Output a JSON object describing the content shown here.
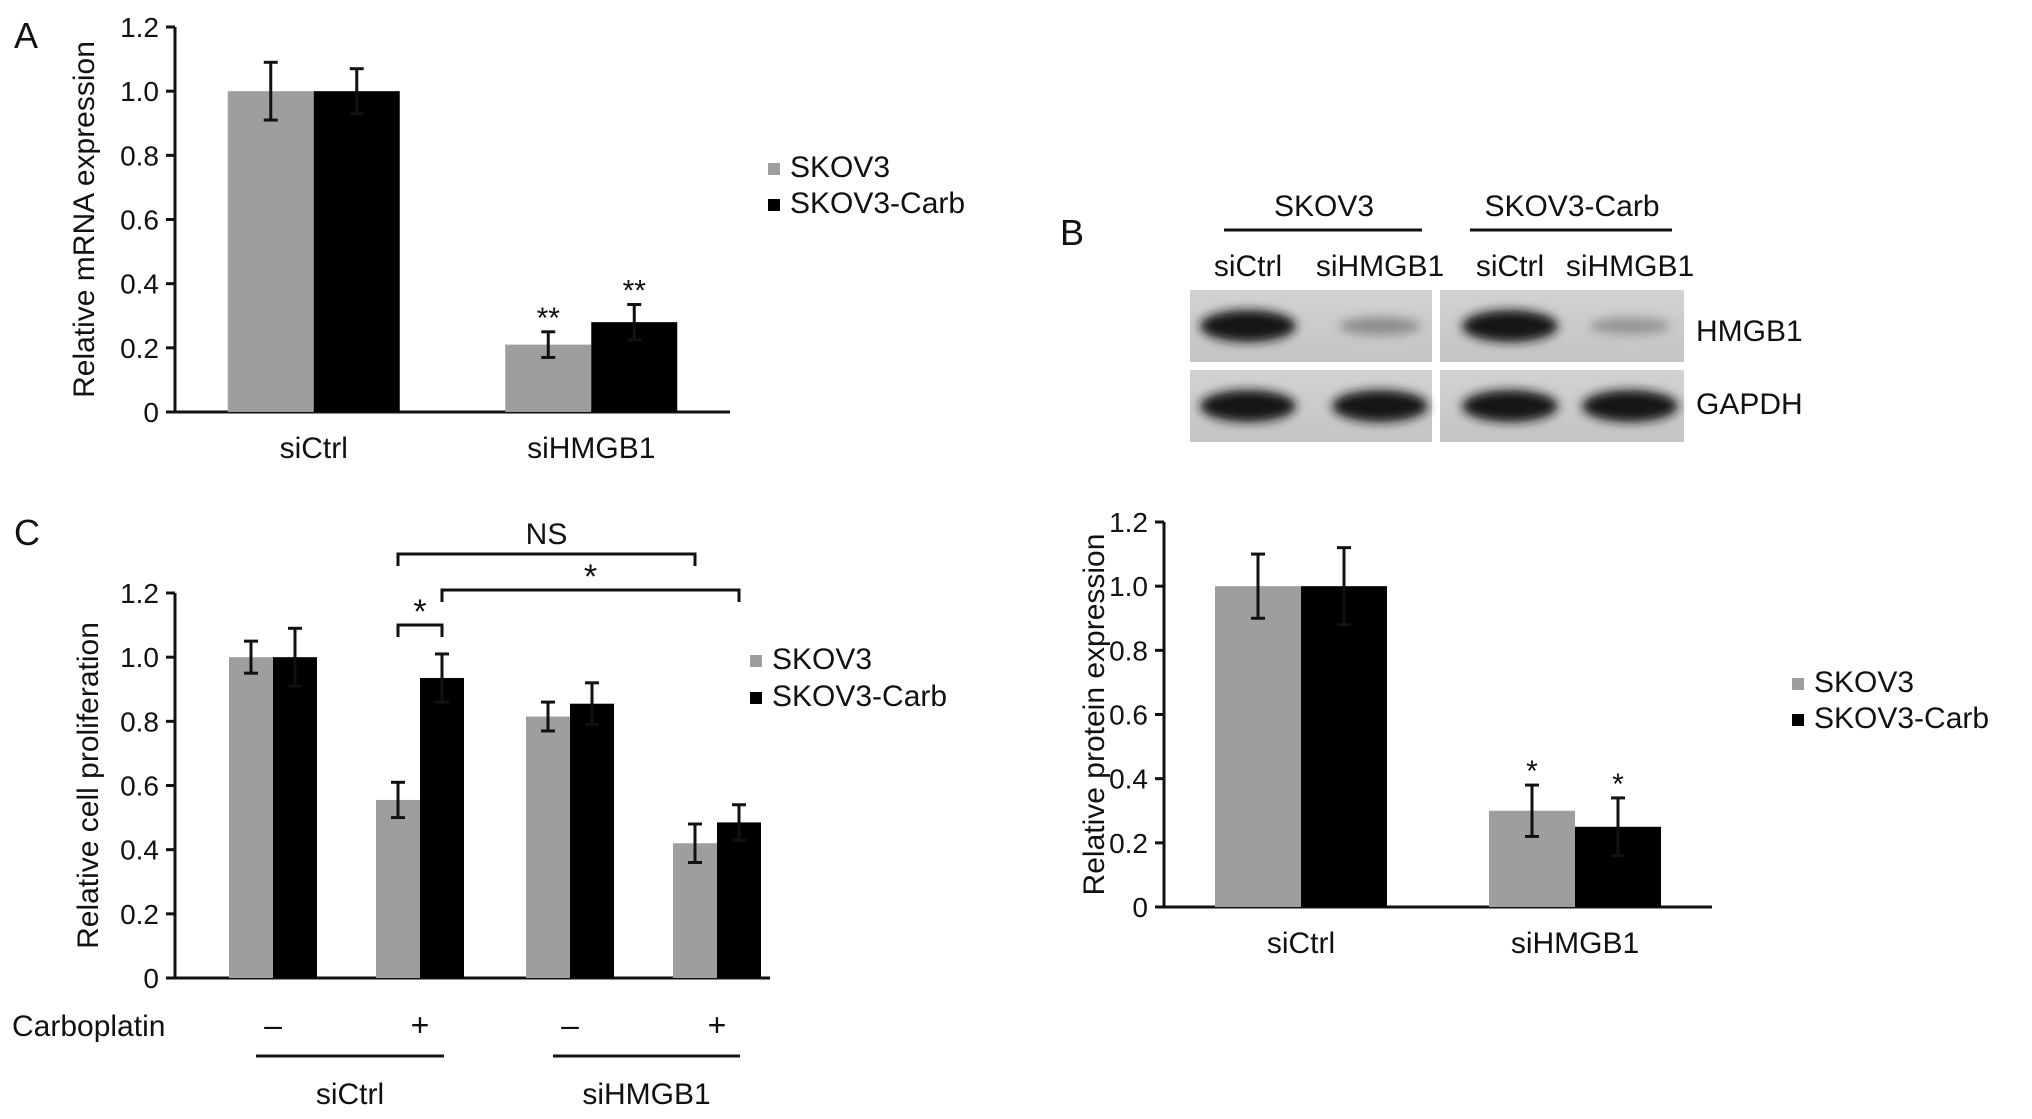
{
  "colors": {
    "series1": "#9e9e9e",
    "series2": "#000000",
    "axis": "#111111"
  },
  "chart_data": [
    {
      "panel_label": "A",
      "type": "bar",
      "categories": [
        "siCtrl",
        "siHMGB1"
      ],
      "series": [
        {
          "name": "SKOV3",
          "values": [
            1.0,
            0.21
          ],
          "errors": [
            0.09,
            0.04
          ],
          "marks": [
            "",
            "**"
          ]
        },
        {
          "name": "SKOV3-Carb",
          "values": [
            1.0,
            0.28
          ],
          "errors": [
            0.07,
            0.055
          ],
          "marks": [
            "",
            "**"
          ]
        }
      ],
      "xlabel": "",
      "ylabel": "Relative mRNA expression",
      "ylim": [
        0,
        1.2
      ],
      "yticks": [
        "0",
        "0.2",
        "0.4",
        "0.6",
        "0.8",
        "1.0",
        "1.2"
      ],
      "legend": "right",
      "grid": false
    },
    {
      "panel_label": "B",
      "type": "bar",
      "categories": [
        "siCtrl",
        "siHMGB1"
      ],
      "series": [
        {
          "name": "SKOV3",
          "values": [
            1.0,
            0.3
          ],
          "errors": [
            0.1,
            0.08
          ],
          "marks": [
            "",
            "*"
          ]
        },
        {
          "name": "SKOV3-Carb",
          "values": [
            1.0,
            0.25
          ],
          "errors": [
            0.12,
            0.09
          ],
          "marks": [
            "",
            "*"
          ]
        }
      ],
      "xlabel": "",
      "ylabel": "Relative protein expression",
      "ylim": [
        0,
        1.2
      ],
      "yticks": [
        "0",
        "0.2",
        "0.4",
        "0.6",
        "0.8",
        "1.0",
        "1.2"
      ],
      "legend": "right",
      "grid": false
    },
    {
      "panel_label": "C",
      "type": "bar",
      "groups": [
        "siCtrl",
        "siHMGB1"
      ],
      "row_label": "Carboplatin",
      "categories": [
        "–",
        "+",
        "–",
        "+"
      ],
      "series": [
        {
          "name": "SKOV3",
          "values": [
            1.0,
            0.555,
            0.815,
            0.42
          ],
          "errors": [
            0.05,
            0.055,
            0.045,
            0.06
          ]
        },
        {
          "name": "SKOV3-Carb",
          "values": [
            1.0,
            0.935,
            0.855,
            0.485
          ],
          "errors": [
            0.09,
            0.075,
            0.065,
            0.055
          ]
        }
      ],
      "comparisons": [
        {
          "label": "*",
          "from": [
            1,
            0
          ],
          "to": [
            1,
            1
          ]
        },
        {
          "label": "NS",
          "from": [
            1,
            0
          ],
          "to": [
            3,
            0
          ]
        },
        {
          "label": "*",
          "from": [
            1,
            1
          ],
          "to": [
            3,
            1
          ]
        }
      ],
      "xlabel": "",
      "ylabel": "Relative cell proliferation",
      "ylim": [
        0,
        1.2
      ],
      "yticks": [
        "0",
        "0.2",
        "0.4",
        "0.6",
        "0.8",
        "1.0",
        "1.2"
      ],
      "legend": "right",
      "grid": false
    }
  ],
  "blot": {
    "groups": [
      "SKOV3",
      "SKOV3-Carb"
    ],
    "lanes": [
      "siCtrl",
      "siHMGB1",
      "siCtrl",
      "siHMGB1"
    ],
    "proteins": [
      "HMGB1",
      "GAPDH"
    ],
    "band_intensity": {
      "HMGB1": [
        1.0,
        0.3,
        1.0,
        0.25
      ],
      "GAPDH": [
        1.0,
        1.0,
        1.0,
        1.0
      ]
    }
  }
}
